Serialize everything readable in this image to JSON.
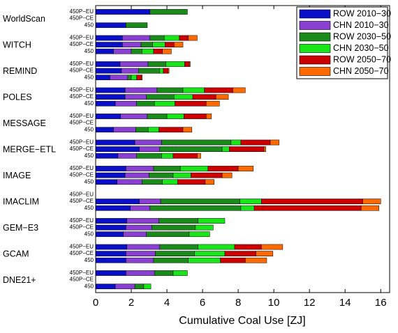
{
  "chart_data": {
    "type": "stacked-hbar",
    "xlabel": "Cumulative Coal Use [ZJ]",
    "models": [
      "WorldScan",
      "WITCH",
      "REMIND",
      "POLES",
      "MESSAGE",
      "MERGE−ETL",
      "IMAGE",
      "IMACLIM",
      "GEM−E3",
      "GCAM",
      "DNE21+"
    ],
    "scenarios": [
      "450P−EU",
      "450P−CE",
      "450"
    ],
    "xlim": [
      0,
      16.5
    ],
    "xticks": [
      0,
      2,
      4,
      6,
      8,
      10,
      12,
      14,
      16
    ],
    "grid": false,
    "legend": "upper right",
    "series": [
      {
        "name": "ROW 2010−30",
        "color": "#0a10c8",
        "values": [
          3.05,
          null,
          1.7,
          1.5,
          1.5,
          1.0,
          1.37,
          1.45,
          0.8,
          1.65,
          1.65,
          1.1,
          1.4,
          null,
          1.0,
          2.2,
          2.45,
          1.25,
          1.7,
          1.65,
          1.2,
          null,
          2.45,
          1.95,
          1.75,
          1.7,
          1.55,
          1.75,
          1.7,
          1.7,
          1.7,
          null,
          1.1
        ]
      },
      {
        "name": "CHN 2010−30",
        "color": "#8a3fd3",
        "values": [
          null,
          null,
          null,
          1.55,
          1.05,
          1.0,
          1.57,
          0.95,
          1.0,
          1.8,
          1.2,
          1.2,
          1.5,
          null,
          1.25,
          1.5,
          1.15,
          1.05,
          1.55,
          1.35,
          1.4,
          null,
          1.2,
          1.1,
          1.8,
          1.45,
          1.3,
          1.85,
          1.65,
          1.55,
          1.6,
          null,
          1.1
        ]
      },
      {
        "name": "ROW 2030−50",
        "color": "#1a8a1a",
        "values": [
          2.1,
          null,
          1.2,
          0.8,
          0.65,
          0.6,
          1.0,
          1.2,
          0.2,
          1.45,
          1.55,
          1.0,
          1.1,
          null,
          0.7,
          3.9,
          3.5,
          1.4,
          1.5,
          1.35,
          1.15,
          null,
          4.45,
          5.1,
          2.2,
          2.45,
          2.4,
          2.15,
          2.2,
          1.95,
          1.05,
          null,
          0.5
        ]
      },
      {
        "name": "CHN 2030−50",
        "color": "#19e619",
        "values": [
          null,
          null,
          null,
          0.85,
          0.7,
          0.65,
          1.05,
          0.2,
          0.3,
          1.2,
          1.05,
          1.15,
          0.95,
          null,
          0.6,
          0.55,
          0.4,
          0.65,
          1.55,
          1.0,
          0.85,
          null,
          1.2,
          0.75,
          1.5,
          1.0,
          1.15,
          2.05,
          1.7,
          1.8,
          0.8,
          null,
          0.4
        ]
      },
      {
        "name": "ROW 2050−70",
        "color": "#cc0000",
        "values": [
          null,
          null,
          null,
          0.5,
          0.5,
          0.5,
          0.27,
          0.27,
          0.27,
          1.6,
          1.3,
          1.75,
          1.25,
          null,
          1.35,
          1.65,
          1.95,
          1.35,
          1.7,
          1.75,
          1.55,
          null,
          5.7,
          6.0,
          null,
          null,
          null,
          1.5,
          1.75,
          1.4,
          null,
          null,
          null
        ]
      },
      {
        "name": "CHN 2050−70",
        "color": "#ff6a00",
        "values": [
          null,
          null,
          null,
          0.5,
          0.5,
          0.5,
          0.05,
          0.05,
          0.05,
          0.7,
          0.7,
          0.75,
          0.3,
          null,
          0.5,
          0.5,
          0.1,
          0.2,
          0.85,
          0.55,
          0.5,
          null,
          1.0,
          1.0,
          null,
          null,
          null,
          1.2,
          0.95,
          1.2,
          null,
          null,
          null
        ]
      }
    ]
  }
}
